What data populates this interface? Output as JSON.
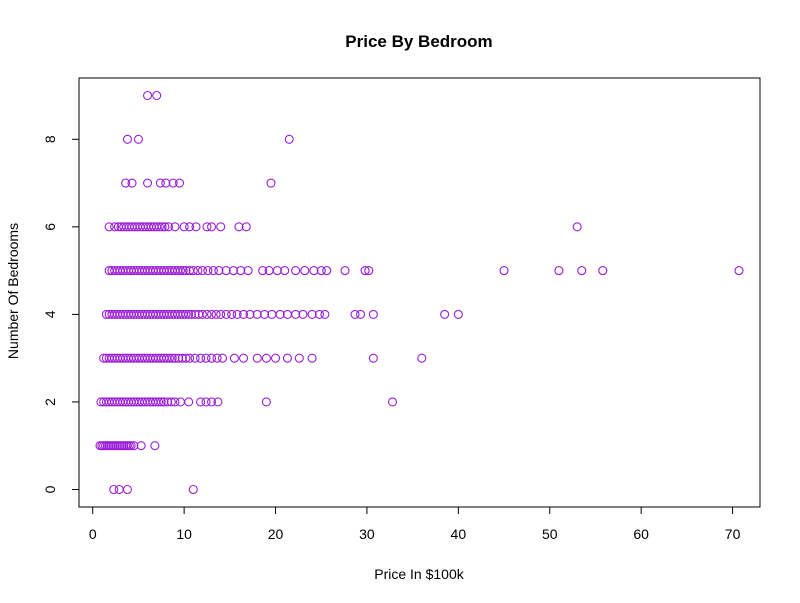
{
  "chart_data": {
    "type": "scatter",
    "title": "Price By Bedroom",
    "xlabel": "Price In $100k",
    "ylabel": "Number Of Bedrooms",
    "xlim": [
      -1.5,
      73
    ],
    "ylim": [
      -0.4,
      9.4
    ],
    "xticks": [
      0,
      10,
      20,
      30,
      40,
      50,
      60,
      70
    ],
    "yticks": [
      0,
      2,
      4,
      6,
      8
    ],
    "grid": false,
    "legend": "none",
    "point_color": "#9b1ed8",
    "series": [
      {
        "points": [
          [
            2.3,
            0
          ],
          [
            2.9,
            0
          ],
          [
            3.8,
            0
          ],
          [
            11,
            0
          ],
          [
            0.8,
            1
          ],
          [
            1.0,
            1
          ],
          [
            1.2,
            1
          ],
          [
            1.4,
            1
          ],
          [
            1.6,
            1
          ],
          [
            1.8,
            1
          ],
          [
            2.0,
            1
          ],
          [
            2.2,
            1
          ],
          [
            2.4,
            1
          ],
          [
            2.6,
            1
          ],
          [
            2.8,
            1
          ],
          [
            3.0,
            1
          ],
          [
            3.2,
            1
          ],
          [
            3.4,
            1
          ],
          [
            3.6,
            1
          ],
          [
            3.8,
            1
          ],
          [
            4.0,
            1
          ],
          [
            4.2,
            1
          ],
          [
            4.5,
            1
          ],
          [
            5.3,
            1
          ],
          [
            6.8,
            1
          ],
          [
            0.9,
            2
          ],
          [
            1.2,
            2
          ],
          [
            1.5,
            2
          ],
          [
            1.8,
            2
          ],
          [
            2.1,
            2
          ],
          [
            2.4,
            2
          ],
          [
            2.7,
            2
          ],
          [
            3.0,
            2
          ],
          [
            3.3,
            2
          ],
          [
            3.6,
            2
          ],
          [
            3.9,
            2
          ],
          [
            4.2,
            2
          ],
          [
            4.5,
            2
          ],
          [
            4.8,
            2
          ],
          [
            5.1,
            2
          ],
          [
            5.4,
            2
          ],
          [
            5.7,
            2
          ],
          [
            6.0,
            2
          ],
          [
            6.3,
            2
          ],
          [
            6.6,
            2
          ],
          [
            6.9,
            2
          ],
          [
            7.2,
            2
          ],
          [
            7.5,
            2
          ],
          [
            7.8,
            2
          ],
          [
            8.2,
            2
          ],
          [
            8.6,
            2
          ],
          [
            9.0,
            2
          ],
          [
            9.6,
            2
          ],
          [
            10.5,
            2
          ],
          [
            11.8,
            2
          ],
          [
            12.4,
            2
          ],
          [
            13,
            2
          ],
          [
            13.7,
            2
          ],
          [
            19,
            2
          ],
          [
            32.8,
            2
          ],
          [
            1.2,
            3
          ],
          [
            1.5,
            3
          ],
          [
            1.8,
            3
          ],
          [
            2.1,
            3
          ],
          [
            2.4,
            3
          ],
          [
            2.7,
            3
          ],
          [
            3.0,
            3
          ],
          [
            3.3,
            3
          ],
          [
            3.6,
            3
          ],
          [
            3.9,
            3
          ],
          [
            4.2,
            3
          ],
          [
            4.5,
            3
          ],
          [
            4.8,
            3
          ],
          [
            5.1,
            3
          ],
          [
            5.4,
            3
          ],
          [
            5.7,
            3
          ],
          [
            6.0,
            3
          ],
          [
            6.3,
            3
          ],
          [
            6.6,
            3
          ],
          [
            6.9,
            3
          ],
          [
            7.2,
            3
          ],
          [
            7.5,
            3
          ],
          [
            7.8,
            3
          ],
          [
            8.1,
            3
          ],
          [
            8.4,
            3
          ],
          [
            8.7,
            3
          ],
          [
            9.0,
            3
          ],
          [
            9.4,
            3
          ],
          [
            9.8,
            3
          ],
          [
            10.2,
            3
          ],
          [
            10.6,
            3
          ],
          [
            11.2,
            3
          ],
          [
            11.8,
            3
          ],
          [
            12.4,
            3
          ],
          [
            13,
            3
          ],
          [
            13.6,
            3
          ],
          [
            14.2,
            3
          ],
          [
            15.5,
            3
          ],
          [
            16.5,
            3
          ],
          [
            18,
            3
          ],
          [
            19,
            3
          ],
          [
            20,
            3
          ],
          [
            21.3,
            3
          ],
          [
            22.6,
            3
          ],
          [
            24,
            3
          ],
          [
            30.7,
            3
          ],
          [
            36,
            3
          ],
          [
            1.5,
            4
          ],
          [
            1.8,
            4
          ],
          [
            2.1,
            4
          ],
          [
            2.4,
            4
          ],
          [
            2.7,
            4
          ],
          [
            3.0,
            4
          ],
          [
            3.3,
            4
          ],
          [
            3.6,
            4
          ],
          [
            3.9,
            4
          ],
          [
            4.2,
            4
          ],
          [
            4.5,
            4
          ],
          [
            4.8,
            4
          ],
          [
            5.1,
            4
          ],
          [
            5.4,
            4
          ],
          [
            5.7,
            4
          ],
          [
            6.0,
            4
          ],
          [
            6.3,
            4
          ],
          [
            6.6,
            4
          ],
          [
            6.9,
            4
          ],
          [
            7.2,
            4
          ],
          [
            7.5,
            4
          ],
          [
            7.8,
            4
          ],
          [
            8.1,
            4
          ],
          [
            8.4,
            4
          ],
          [
            8.7,
            4
          ],
          [
            9.0,
            4
          ],
          [
            9.3,
            4
          ],
          [
            9.6,
            4
          ],
          [
            9.9,
            4
          ],
          [
            10.2,
            4
          ],
          [
            10.5,
            4
          ],
          [
            10.8,
            4
          ],
          [
            11.2,
            4
          ],
          [
            11.6,
            4
          ],
          [
            12,
            4
          ],
          [
            12.5,
            4
          ],
          [
            13,
            4
          ],
          [
            13.5,
            4
          ],
          [
            14,
            4
          ],
          [
            14.6,
            4
          ],
          [
            15.2,
            4
          ],
          [
            15.8,
            4
          ],
          [
            16.5,
            4
          ],
          [
            17.2,
            4
          ],
          [
            18,
            4
          ],
          [
            18.8,
            4
          ],
          [
            19.6,
            4
          ],
          [
            20.5,
            4
          ],
          [
            21.3,
            4
          ],
          [
            22.2,
            4
          ],
          [
            23,
            4
          ],
          [
            24,
            4
          ],
          [
            24.8,
            4
          ],
          [
            25.4,
            4
          ],
          [
            28.7,
            4
          ],
          [
            29.3,
            4
          ],
          [
            30.7,
            4
          ],
          [
            38.5,
            4
          ],
          [
            40,
            4
          ],
          [
            1.8,
            5
          ],
          [
            2.1,
            5
          ],
          [
            2.4,
            5
          ],
          [
            2.7,
            5
          ],
          [
            3.0,
            5
          ],
          [
            3.3,
            5
          ],
          [
            3.6,
            5
          ],
          [
            3.9,
            5
          ],
          [
            4.2,
            5
          ],
          [
            4.5,
            5
          ],
          [
            4.8,
            5
          ],
          [
            5.1,
            5
          ],
          [
            5.4,
            5
          ],
          [
            5.7,
            5
          ],
          [
            6.0,
            5
          ],
          [
            6.3,
            5
          ],
          [
            6.6,
            5
          ],
          [
            6.9,
            5
          ],
          [
            7.2,
            5
          ],
          [
            7.5,
            5
          ],
          [
            7.8,
            5
          ],
          [
            8.1,
            5
          ],
          [
            8.4,
            5
          ],
          [
            8.7,
            5
          ],
          [
            9.0,
            5
          ],
          [
            9.3,
            5
          ],
          [
            9.6,
            5
          ],
          [
            9.9,
            5
          ],
          [
            10.2,
            5
          ],
          [
            10.6,
            5
          ],
          [
            11,
            5
          ],
          [
            11.5,
            5
          ],
          [
            12,
            5
          ],
          [
            12.6,
            5
          ],
          [
            13.2,
            5
          ],
          [
            13.8,
            5
          ],
          [
            14.6,
            5
          ],
          [
            15.4,
            5
          ],
          [
            16.2,
            5
          ],
          [
            17,
            5
          ],
          [
            18.6,
            5
          ],
          [
            19.3,
            5
          ],
          [
            20.2,
            5
          ],
          [
            21,
            5
          ],
          [
            22.2,
            5
          ],
          [
            23.2,
            5
          ],
          [
            24.2,
            5
          ],
          [
            25,
            5
          ],
          [
            25.6,
            5
          ],
          [
            27.6,
            5
          ],
          [
            29.8,
            5
          ],
          [
            30.2,
            5
          ],
          [
            45,
            5
          ],
          [
            51,
            5
          ],
          [
            53.5,
            5
          ],
          [
            55.8,
            5
          ],
          [
            70.7,
            5
          ],
          [
            1.8,
            6
          ],
          [
            2.4,
            6
          ],
          [
            2.8,
            6
          ],
          [
            3.1,
            6
          ],
          [
            3.4,
            6
          ],
          [
            3.7,
            6
          ],
          [
            4.0,
            6
          ],
          [
            4.3,
            6
          ],
          [
            4.6,
            6
          ],
          [
            4.9,
            6
          ],
          [
            5.2,
            6
          ],
          [
            5.5,
            6
          ],
          [
            5.8,
            6
          ],
          [
            6.1,
            6
          ],
          [
            6.4,
            6
          ],
          [
            6.7,
            6
          ],
          [
            7.0,
            6
          ],
          [
            7.3,
            6
          ],
          [
            7.6,
            6
          ],
          [
            7.9,
            6
          ],
          [
            8.3,
            6
          ],
          [
            9.0,
            6
          ],
          [
            10,
            6
          ],
          [
            10.6,
            6
          ],
          [
            11.3,
            6
          ],
          [
            12.5,
            6
          ],
          [
            13,
            6
          ],
          [
            14,
            6
          ],
          [
            16,
            6
          ],
          [
            16.8,
            6
          ],
          [
            53,
            6
          ],
          [
            3.6,
            7
          ],
          [
            4.3,
            7
          ],
          [
            6.0,
            7
          ],
          [
            7.4,
            7
          ],
          [
            8.0,
            7
          ],
          [
            8.8,
            7
          ],
          [
            9.5,
            7
          ],
          [
            19.5,
            7
          ],
          [
            3.8,
            8
          ],
          [
            5.0,
            8
          ],
          [
            21.5,
            8
          ],
          [
            6.0,
            9
          ],
          [
            7.0,
            9
          ]
        ]
      }
    ]
  }
}
